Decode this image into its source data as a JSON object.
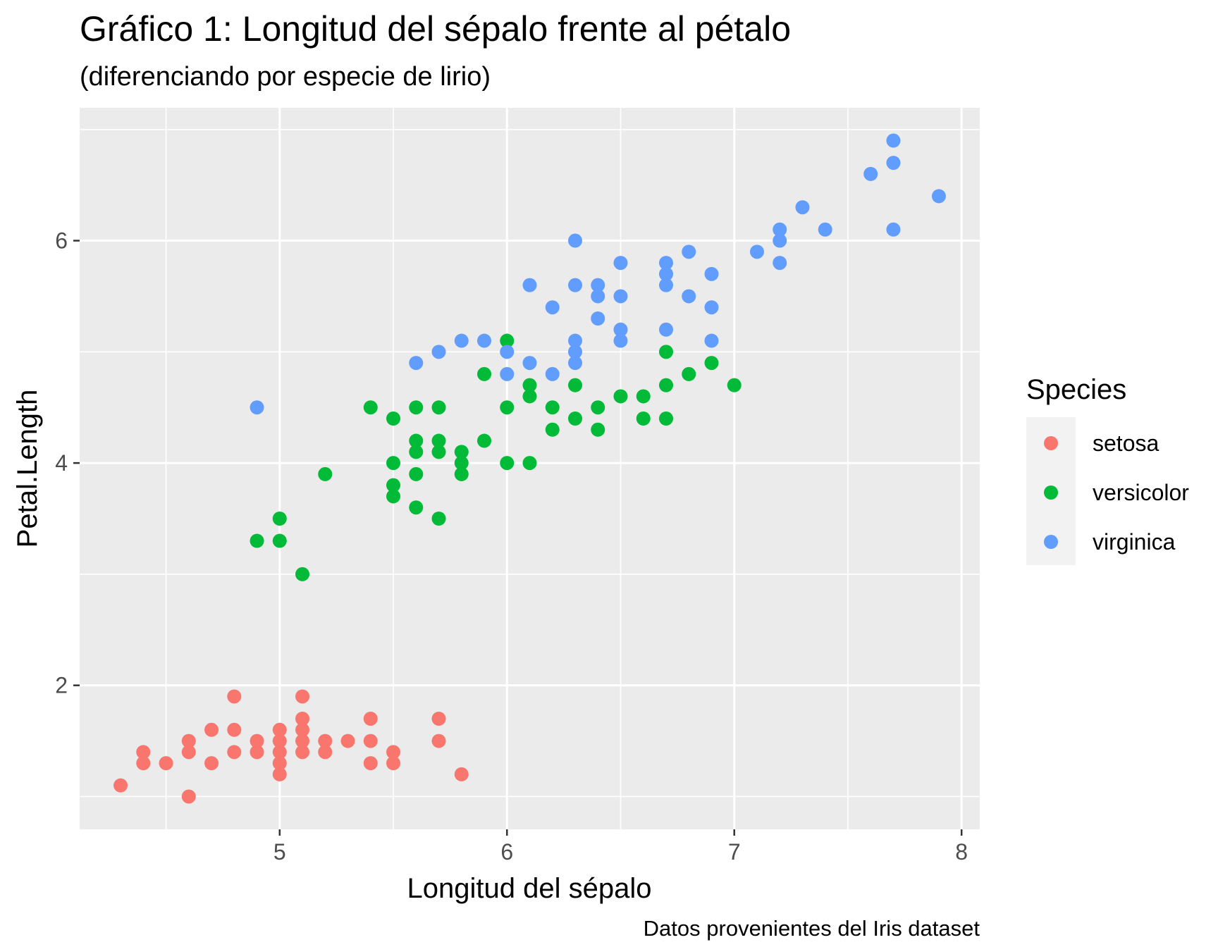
{
  "chart_data": {
    "type": "scatter",
    "title": "Gráfico 1: Longitud del sépalo frente al pétalo",
    "subtitle": "(diferenciando por especie de lirio)",
    "xlabel": "Longitud del sépalo",
    "ylabel": "Petal.Length",
    "caption": "Datos provenientes del Iris dataset",
    "xlim": [
      4.12,
      8.08
    ],
    "ylim": [
      0.705,
      7.195
    ],
    "x_ticks": [
      5,
      6,
      7,
      8
    ],
    "x_tick_labels": [
      "5",
      "6",
      "7",
      "8"
    ],
    "y_ticks": [
      2,
      4,
      6
    ],
    "y_tick_labels": [
      "2",
      "4",
      "6"
    ],
    "grid": true,
    "legend": {
      "title": "Species",
      "position": "right",
      "entries": [
        "setosa",
        "versicolor",
        "virginica"
      ]
    },
    "colors": {
      "setosa": "#F8766D",
      "versicolor": "#00BA38",
      "virginica": "#619CFF",
      "panel_bg": "#EBEBEB",
      "grid": "#FFFFFF"
    },
    "series": [
      {
        "name": "setosa",
        "points": [
          [
            4.3,
            1.1
          ],
          [
            4.4,
            1.4
          ],
          [
            4.4,
            1.3
          ],
          [
            4.5,
            1.3
          ],
          [
            4.6,
            1.5
          ],
          [
            4.6,
            1.4
          ],
          [
            4.6,
            1.0
          ],
          [
            4.7,
            1.6
          ],
          [
            4.7,
            1.3
          ],
          [
            4.8,
            1.9
          ],
          [
            4.8,
            1.6
          ],
          [
            4.8,
            1.4
          ],
          [
            4.9,
            1.5
          ],
          [
            4.9,
            1.4
          ],
          [
            5.0,
            1.6
          ],
          [
            5.0,
            1.5
          ],
          [
            5.0,
            1.4
          ],
          [
            5.0,
            1.3
          ],
          [
            5.0,
            1.2
          ],
          [
            5.1,
            1.9
          ],
          [
            5.1,
            1.7
          ],
          [
            5.1,
            1.6
          ],
          [
            5.1,
            1.5
          ],
          [
            5.1,
            1.4
          ],
          [
            5.2,
            1.5
          ],
          [
            5.2,
            1.4
          ],
          [
            5.3,
            1.5
          ],
          [
            5.4,
            1.7
          ],
          [
            5.4,
            1.5
          ],
          [
            5.4,
            1.3
          ],
          [
            5.5,
            1.4
          ],
          [
            5.5,
            1.3
          ],
          [
            5.7,
            1.7
          ],
          [
            5.7,
            1.5
          ],
          [
            5.8,
            1.2
          ]
        ]
      },
      {
        "name": "versicolor",
        "points": [
          [
            4.9,
            3.3
          ],
          [
            5.0,
            3.5
          ],
          [
            5.0,
            3.3
          ],
          [
            5.1,
            3.0
          ],
          [
            5.2,
            3.9
          ],
          [
            5.4,
            4.5
          ],
          [
            5.5,
            4.4
          ],
          [
            5.5,
            4.0
          ],
          [
            5.5,
            3.8
          ],
          [
            5.5,
            3.7
          ],
          [
            5.6,
            4.5
          ],
          [
            5.6,
            4.2
          ],
          [
            5.6,
            4.1
          ],
          [
            5.6,
            3.9
          ],
          [
            5.6,
            3.6
          ],
          [
            5.7,
            4.5
          ],
          [
            5.7,
            4.2
          ],
          [
            5.7,
            4.1
          ],
          [
            5.7,
            3.5
          ],
          [
            5.8,
            4.1
          ],
          [
            5.8,
            4.0
          ],
          [
            5.8,
            3.9
          ],
          [
            5.9,
            4.8
          ],
          [
            5.9,
            4.2
          ],
          [
            6.0,
            5.1
          ],
          [
            6.0,
            4.5
          ],
          [
            6.0,
            4.0
          ],
          [
            6.1,
            4.7
          ],
          [
            6.1,
            4.6
          ],
          [
            6.1,
            4.0
          ],
          [
            6.2,
            4.5
          ],
          [
            6.2,
            4.3
          ],
          [
            6.3,
            4.7
          ],
          [
            6.3,
            4.4
          ],
          [
            6.4,
            4.5
          ],
          [
            6.4,
            4.3
          ],
          [
            6.5,
            4.6
          ],
          [
            6.6,
            4.6
          ],
          [
            6.6,
            4.4
          ],
          [
            6.7,
            5.0
          ],
          [
            6.7,
            4.7
          ],
          [
            6.7,
            4.4
          ],
          [
            6.8,
            4.8
          ],
          [
            6.9,
            4.9
          ],
          [
            7.0,
            4.7
          ]
        ]
      },
      {
        "name": "virginica",
        "points": [
          [
            4.9,
            4.5
          ],
          [
            5.6,
            4.9
          ],
          [
            5.7,
            5.0
          ],
          [
            5.8,
            5.1
          ],
          [
            5.9,
            5.1
          ],
          [
            6.0,
            5.0
          ],
          [
            6.0,
            4.8
          ],
          [
            6.1,
            5.6
          ],
          [
            6.1,
            4.9
          ],
          [
            6.2,
            5.4
          ],
          [
            6.2,
            4.8
          ],
          [
            6.3,
            6.0
          ],
          [
            6.3,
            5.6
          ],
          [
            6.3,
            5.1
          ],
          [
            6.3,
            5.0
          ],
          [
            6.3,
            4.9
          ],
          [
            6.4,
            5.6
          ],
          [
            6.4,
            5.5
          ],
          [
            6.4,
            5.3
          ],
          [
            6.5,
            5.8
          ],
          [
            6.5,
            5.5
          ],
          [
            6.5,
            5.2
          ],
          [
            6.5,
            5.1
          ],
          [
            6.7,
            5.8
          ],
          [
            6.7,
            5.7
          ],
          [
            6.7,
            5.6
          ],
          [
            6.7,
            5.2
          ],
          [
            6.8,
            5.9
          ],
          [
            6.8,
            5.5
          ],
          [
            6.9,
            5.7
          ],
          [
            6.9,
            5.4
          ],
          [
            6.9,
            5.1
          ],
          [
            7.1,
            5.9
          ],
          [
            7.2,
            6.1
          ],
          [
            7.2,
            6.0
          ],
          [
            7.2,
            5.8
          ],
          [
            7.3,
            6.3
          ],
          [
            7.4,
            6.1
          ],
          [
            7.6,
            6.6
          ],
          [
            7.7,
            6.9
          ],
          [
            7.7,
            6.7
          ],
          [
            7.7,
            6.1
          ],
          [
            7.9,
            6.4
          ]
        ]
      }
    ]
  }
}
